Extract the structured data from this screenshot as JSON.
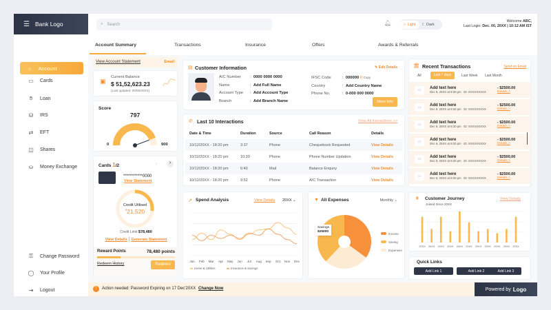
{
  "header": {
    "logo": "Bank Logo",
    "search_placeholder": "Search",
    "theme_light": "Light",
    "theme_dark": "Dark",
    "welcome_prefix": "Welcome",
    "welcome_user": "ABC,",
    "last_login_label": "Last Login:",
    "last_login_value": "Dec. 00, 20XX | 10:12 AM IST"
  },
  "sidebar": {
    "active": "Account",
    "items": [
      {
        "label": "Cards",
        "icon": "card-icon"
      },
      {
        "label": "Loan",
        "icon": "loan-icon"
      },
      {
        "label": "IRS",
        "icon": "irs-icon"
      },
      {
        "label": "EFT",
        "icon": "transfer-icon"
      },
      {
        "label": "Shares",
        "icon": "shares-icon"
      },
      {
        "label": "Money Exchange",
        "icon": "exchange-icon"
      }
    ],
    "bottom": [
      {
        "label": "Change Password"
      },
      {
        "label": "Your Profile"
      },
      {
        "label": "Logout"
      }
    ]
  },
  "tabs": [
    "Account Summary",
    "Transactions",
    "Insurance",
    "Offers",
    "Awards & Referrals"
  ],
  "statement": {
    "label": "View Account Statement",
    "email": "Email"
  },
  "balance": {
    "label": "Current Balance",
    "value": "$ 51,52,623.23",
    "updated": "(Last updated: 00/00/20XX)"
  },
  "score": {
    "title": "Score",
    "value": "797",
    "min": "0",
    "max": "900",
    "fraction": 0.885
  },
  "cards": {
    "title": "Cards",
    "current": "1",
    "total": "/2",
    "number": "************0000",
    "view_statement": "View Statement",
    "credit_label": "Credit Utilised",
    "credit_value": "21,520",
    "currency": "$",
    "credit_limit_label": "Credit Limit",
    "credit_limit": "$78,480",
    "utilised_fraction": 0.27,
    "view_details": "View Details",
    "separator": "|",
    "generate": "Generate Statement"
  },
  "rewards": {
    "label": "Reward Points",
    "value": "78,480 points",
    "progress": 0.3,
    "history": "Redeem History",
    "redeem": "Redeem"
  },
  "customer": {
    "title": "Customer Information",
    "edit": "Edit Details",
    "fields": [
      {
        "k": "A/C Number",
        "v": "0000 0000 0000"
      },
      {
        "k": "Name",
        "v": "Add Full Name"
      },
      {
        "k": "Account Type",
        "v": "Add Account Type"
      },
      {
        "k": "Branch",
        "v": "Add Branch Name"
      }
    ],
    "fields2": [
      {
        "k": "IFSC Code",
        "v": "000000"
      },
      {
        "k": "Country",
        "v": "Add Country Name"
      },
      {
        "k": "Phone No.",
        "v": "0-000 000 0000"
      }
    ],
    "copy": "Copy",
    "more": "More Info"
  },
  "interactions": {
    "title": "Last 10 Interactions",
    "view_all": "View All Interactions >>",
    "headers": [
      "Date & Time",
      "Duration",
      "Source",
      "Call Reason",
      "Details"
    ],
    "rows": [
      [
        "10/12/20XX - 18:20 pm",
        "3:37",
        "Phone",
        "Chequebook Requested",
        "View Details"
      ],
      [
        "10/12/20XX - 18:20 pm",
        "10:30",
        "Phone",
        "Phone Number Updation",
        "View Details"
      ],
      [
        "10/12/20XX - 18:20 pm",
        "6:40",
        "Mail",
        "Balance Enquiry",
        "View Details"
      ],
      [
        "10/12/20XX - 18:20 pm",
        "9:52",
        "Phone",
        "A/C Transaction",
        "View Details"
      ]
    ]
  },
  "recent": {
    "title": "Recent Transactions",
    "send": "Send on Email",
    "filters": [
      "All",
      "Last 7 days",
      "Last Week",
      "Last Month"
    ],
    "active_filter": "Last 7 days",
    "items": [
      {
        "title": "Add text here",
        "date": "Dec 9, 20XX at 9:30 pm",
        "id": "ID: XXXXXXXXX",
        "amount": "- $2500.00",
        "details": "Details >"
      },
      {
        "title": "Add text here",
        "date": "Dec 9, 20XX at 9:30 pm",
        "id": "ID: XXXXXXXXX",
        "amount": "- $2500.00",
        "details": "Details >"
      },
      {
        "title": "Add text here",
        "date": "Dec 9, 20XX at 9:30 pm",
        "id": "ID: XXXXXXXXX",
        "amount": "- $2500.00",
        "details": "Details >"
      },
      {
        "title": "Add text here",
        "date": "Dec 9, 20XX at 9:30 pm",
        "id": "ID: XXXXXXXXX",
        "amount": "- $2500.00",
        "details": "Details >"
      },
      {
        "title": "Add text here",
        "date": "Dec 9, 20XX at 9:30 pm",
        "id": "ID: XXXXXXXXX",
        "amount": "- $2500.00",
        "details": "Details >"
      },
      {
        "title": "Add text here",
        "date": "Dec 9, 20XX at 9:30 pm",
        "id": "ID: XXXXXXXXX",
        "amount": "- $2500.00",
        "details": "Details >"
      }
    ]
  },
  "spend": {
    "title": "Spend Analysis",
    "view": "View Details",
    "year": "20XX"
  },
  "expenses": {
    "title": "All Expenses",
    "period": "Monthly",
    "tooltip_label": "Savings",
    "tooltip_value": "$25000"
  },
  "journey": {
    "title": "Customer Journey",
    "subtitle": "Joined Since 20XX",
    "view": "View Details"
  },
  "quick": {
    "title": "Quick Links",
    "links": [
      "Add Link 1",
      "Add Link 2",
      "Add Link 3"
    ]
  },
  "footer": {
    "notice": "Action needed: Password Expiring on 17 Dec'20XX",
    "change": "Change Now",
    "powered": "Powered by",
    "logo": "Logo"
  },
  "colors": {
    "accent": "#f7a83a",
    "dark": "#2c3345",
    "income": "#f7903a",
    "saving": "#f8b84e",
    "expenses": "#fdebd3"
  },
  "chart_data": [
    {
      "type": "line",
      "title": "Spend Analysis",
      "categories": [
        "Jan",
        "Feb",
        "Mar",
        "Apr",
        "May",
        "Jun",
        "Jul",
        "Aug",
        "Sep",
        "Oct",
        "Nov",
        "Dec"
      ],
      "series": [
        {
          "name": "Home & Utilities",
          "values": [
            30,
            42,
            30,
            48,
            40,
            30,
            40,
            48,
            50,
            62,
            52,
            40
          ]
        },
        {
          "name": "Insurance & Savings",
          "values": [
            38,
            28,
            38,
            32,
            38,
            32,
            42,
            38,
            50,
            40,
            30,
            22
          ]
        }
      ],
      "grid": true,
      "legend": "bottom"
    },
    {
      "type": "pie",
      "title": "All Expenses",
      "categories": [
        "Income",
        "Saving",
        "Expenses"
      ],
      "values": [
        35,
        38,
        27
      ],
      "legend": "right"
    },
    {
      "type": "bar",
      "title": "Customer Journey",
      "categories": [
        "20XX",
        "20XX",
        "20XX",
        "20XX",
        "20XX",
        "20XX",
        "20XX",
        "20XX",
        "20XX",
        "20XX",
        "20XX"
      ],
      "values": [
        116,
        61,
        116,
        51,
        140,
        91,
        51,
        61,
        42,
        61,
        116
      ]
    }
  ]
}
